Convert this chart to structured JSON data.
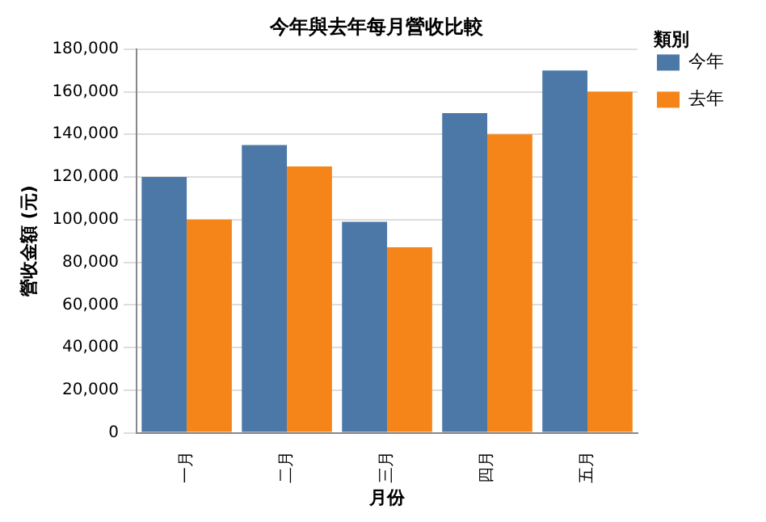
{
  "chart_data": {
    "type": "bar",
    "title": "今年與去年每月營收比較",
    "xlabel": "月份",
    "ylabel": "營收金額 (元)",
    "legend_title": "類別",
    "categories": [
      "一月",
      "二月",
      "三月",
      "四月",
      "五月"
    ],
    "series": [
      {
        "name": "今年",
        "color": "#4c78a8",
        "values": [
          120000,
          135000,
          99000,
          150000,
          170000
        ]
      },
      {
        "name": "去年",
        "color": "#f58518",
        "values": [
          100000,
          125000,
          87000,
          140000,
          160000
        ]
      }
    ],
    "ylim": [
      0,
      180000
    ],
    "yticks": [
      0,
      {
        "value": 20000,
        "label": "20,000"
      },
      {
        "value": 40000,
        "label": "40,000"
      },
      {
        "value": 60000,
        "label": "60,000"
      },
      {
        "value": 80000,
        "label": "80,000"
      },
      {
        "value": 100000,
        "label": "100,000"
      },
      {
        "value": 120000,
        "label": "120,000"
      },
      {
        "value": 140000,
        "label": "140,000"
      },
      {
        "value": 160000,
        "label": "160,000"
      },
      {
        "value": 180000,
        "label": "180,000"
      }
    ],
    "grid": "y",
    "legend": "top right"
  }
}
